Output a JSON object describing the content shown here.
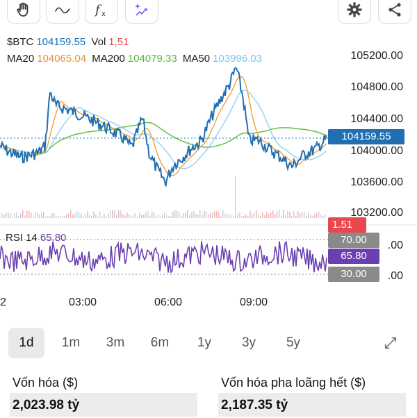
{
  "toolbar": {
    "tools": [
      "hand-icon",
      "wave-icon",
      "function-icon",
      "sparkle-chart-icon"
    ],
    "right": [
      "gear-icon",
      "share-icon"
    ]
  },
  "legend": {
    "symbol": "$BTC",
    "price": "104159.55",
    "vol_label": "Vol",
    "vol_value": "1,51",
    "ma20_label": "MA20",
    "ma20_value": "104065.04",
    "ma200_label": "MA200",
    "ma200_value": "104079.33",
    "ma50_label": "MA50",
    "ma50_value": "103996.03"
  },
  "price_axis": [
    "105200.00",
    "104800.00",
    "104400.00",
    "104000.00",
    "103600.00",
    "103200.00"
  ],
  "current_price_tag": "104159.55",
  "volume_tag": "1.51",
  "rsi": {
    "label": "RSI 14",
    "value": "65.80",
    "upper": "70.00",
    "lower": "30.00",
    "axis_partial": ".00"
  },
  "time_axis": [
    "2",
    "03:00",
    "06:00",
    "09:00"
  ],
  "timeframes": [
    "1d",
    "1m",
    "3m",
    "6m",
    "1y",
    "3y",
    "5y"
  ],
  "active_timeframe": "1d",
  "stats": {
    "market_cap_label": "Vốn hóa ($)",
    "market_cap_value": "2,023.98 tỷ",
    "fdv_label": "Vốn hóa pha loãng hết ($)",
    "fdv_value": "2,187.35 tỷ"
  },
  "colors": {
    "price": "#1f6fb2",
    "ma20": "#f0a23a",
    "ma200": "#6cc24a",
    "ma50": "#8fd0ef",
    "vol": "#e8474c",
    "rsi": "#6a3fb0",
    "bound": "#8a8a8a"
  }
}
